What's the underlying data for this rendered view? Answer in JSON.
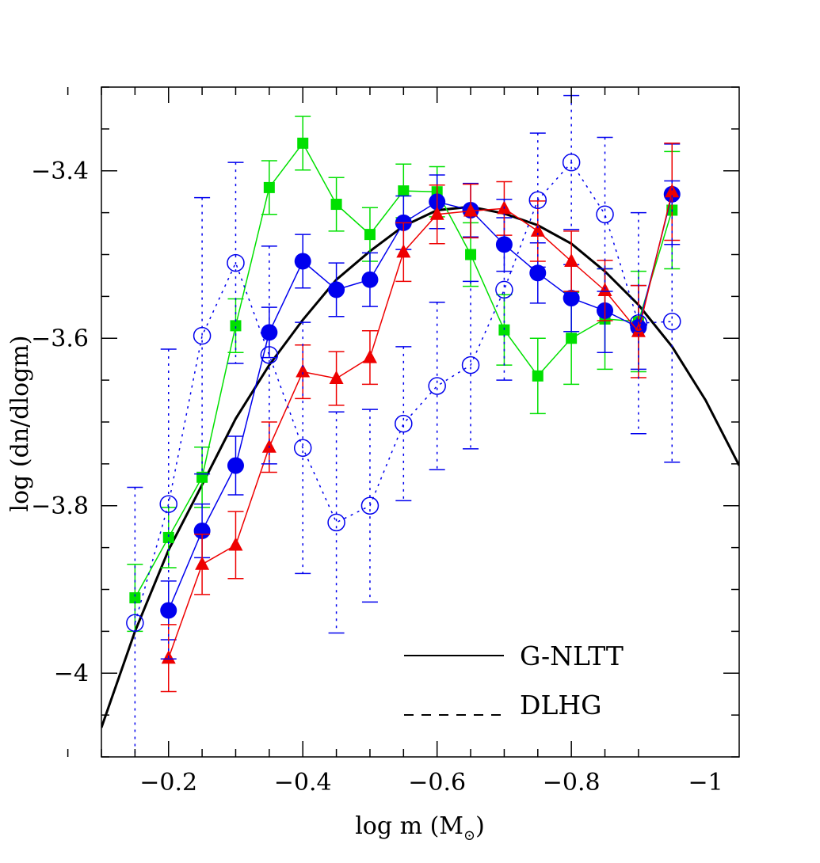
{
  "chart_data": {
    "type": "line",
    "title": "",
    "xlabel": "log m (M",
    "xlabel_sub": "⊙",
    "xlabel_close": ")",
    "ylabel": "log (dn/dlogm)",
    "xlim": [
      -0.1,
      -1.05
    ],
    "ylim": [
      -4.1,
      -3.3
    ],
    "x_ticks": [
      -0.2,
      -0.4,
      -0.6,
      -0.8,
      -1
    ],
    "x_tick_labels": [
      "−0.2",
      "−0.4",
      "−0.6",
      "−0.8",
      "−1"
    ],
    "y_ticks": [
      -3.4,
      -3.6,
      -3.8,
      -4
    ],
    "y_tick_labels": [
      "−3.4",
      "−3.6",
      "−3.8",
      "−4"
    ],
    "series": [
      {
        "name": "green-squares",
        "color": "#00e000",
        "marker": "square",
        "filled": true,
        "dashed": false,
        "x": [
          -0.15,
          -0.2,
          -0.25,
          -0.3,
          -0.35,
          -0.4,
          -0.45,
          -0.5,
          -0.55,
          -0.6,
          -0.65,
          -0.7,
          -0.75,
          -0.8,
          -0.85,
          -0.9,
          -0.95
        ],
        "y": [
          -3.91,
          -3.838,
          -3.766,
          -3.585,
          -3.42,
          -3.367,
          -3.44,
          -3.476,
          -3.424,
          -3.425,
          -3.5,
          -3.59,
          -3.645,
          -3.6,
          -3.577,
          -3.58,
          -3.447
        ],
        "err": [
          0.04,
          0.036,
          0.036,
          0.032,
          0.032,
          0.032,
          0.032,
          0.032,
          0.032,
          0.03,
          0.038,
          0.042,
          0.045,
          0.055,
          0.06,
          0.06,
          0.07
        ]
      },
      {
        "name": "blue-filled-circles",
        "color": "#0000ee",
        "marker": "circle",
        "filled": true,
        "dashed": false,
        "x": [
          -0.2,
          -0.25,
          -0.3,
          -0.35,
          -0.4,
          -0.45,
          -0.5,
          -0.55,
          -0.6,
          -0.65,
          -0.7,
          -0.75,
          -0.8,
          -0.85,
          -0.9,
          -0.95
        ],
        "y": [
          -3.925,
          -3.83,
          -3.752,
          -3.593,
          -3.508,
          -3.542,
          -3.53,
          -3.462,
          -3.437,
          -3.447,
          -3.488,
          -3.522,
          -3.552,
          -3.567,
          -3.587,
          -3.428
        ],
        "err": [
          0.035,
          0.032,
          0.035,
          0.03,
          0.032,
          0.032,
          0.032,
          0.032,
          0.032,
          0.032,
          0.032,
          0.036,
          0.04,
          0.05,
          0.05,
          0.06
        ]
      },
      {
        "name": "red-triangles",
        "color": "#ee0000",
        "marker": "triangle",
        "filled": true,
        "dashed": false,
        "x": [
          -0.2,
          -0.25,
          -0.3,
          -0.35,
          -0.4,
          -0.45,
          -0.5,
          -0.55,
          -0.6,
          -0.65,
          -0.7,
          -0.75,
          -0.8,
          -0.85,
          -0.9,
          -0.95
        ],
        "y": [
          -3.982,
          -3.87,
          -3.847,
          -3.73,
          -3.64,
          -3.648,
          -3.623,
          -3.497,
          -3.452,
          -3.448,
          -3.445,
          -3.472,
          -3.508,
          -3.543,
          -3.592,
          -3.425
        ],
        "err": [
          0.04,
          0.036,
          0.04,
          0.03,
          0.032,
          0.032,
          0.032,
          0.035,
          0.035,
          0.032,
          0.032,
          0.036,
          0.036,
          0.036,
          0.055,
          0.058
        ]
      },
      {
        "name": "blue-open-circles",
        "color": "#0000ee",
        "marker": "circle",
        "filled": false,
        "dashed": true,
        "x": [
          -0.15,
          -0.2,
          -0.25,
          -0.3,
          -0.35,
          -0.4,
          -0.45,
          -0.5,
          -0.55,
          -0.6,
          -0.65,
          -0.7,
          -0.75,
          -0.8,
          -0.85,
          -0.9,
          -0.95
        ],
        "y": [
          -3.94,
          -3.798,
          -3.597,
          -3.51,
          -3.62,
          -3.731,
          -3.82,
          -3.8,
          -3.702,
          -3.657,
          -3.632,
          -3.542,
          -3.435,
          -3.39,
          -3.452,
          -3.582,
          -3.58
        ],
        "err": [
          0.162,
          0.185,
          0.165,
          0.12,
          0.13,
          0.15,
          0.132,
          0.115,
          0.092,
          0.1,
          0.1,
          0.108,
          0.08,
          0.08,
          0.092,
          0.132,
          0.168
        ]
      }
    ],
    "model_curve": {
      "name": "G-NLTT",
      "x": [
        -0.1,
        -0.15,
        -0.2,
        -0.25,
        -0.3,
        -0.35,
        -0.4,
        -0.45,
        -0.5,
        -0.55,
        -0.6,
        -0.65,
        -0.7,
        -0.75,
        -0.8,
        -0.85,
        -0.9,
        -0.95,
        -1.0,
        -1.05
      ],
      "y": [
        -4.065,
        -3.95,
        -3.853,
        -3.775,
        -3.696,
        -3.632,
        -3.578,
        -3.53,
        -3.496,
        -3.466,
        -3.447,
        -3.443,
        -3.451,
        -3.465,
        -3.487,
        -3.52,
        -3.56,
        -3.61,
        -3.674,
        -3.752
      ]
    },
    "legend": [
      {
        "label": "G-NLTT",
        "style": "solid"
      },
      {
        "label": "DLHG",
        "style": "dashed"
      }
    ]
  }
}
